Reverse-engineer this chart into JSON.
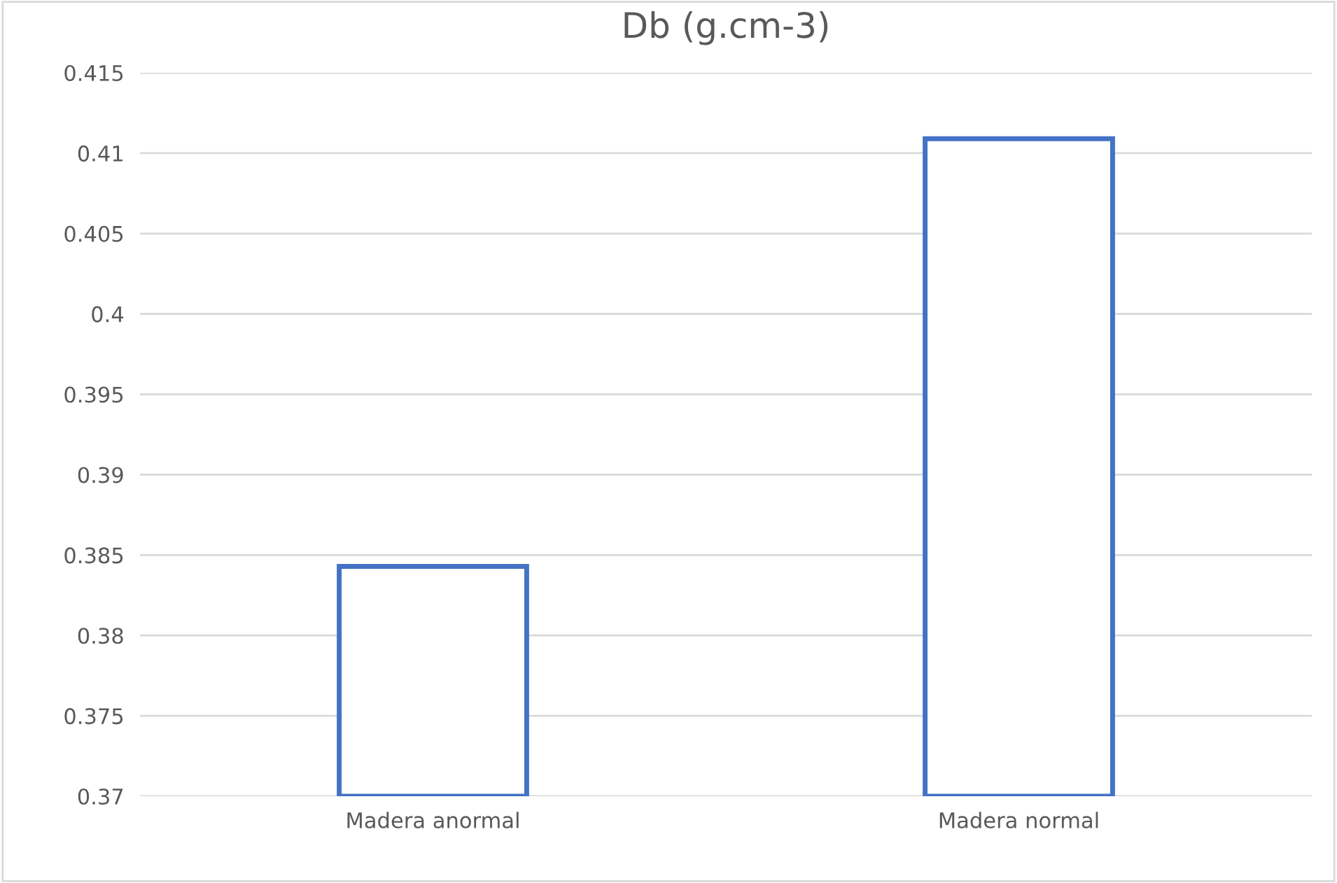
{
  "chart_data": {
    "type": "bar",
    "title": "Db (g.cm-3)",
    "categories": [
      "Madera anormal",
      "Madera normal"
    ],
    "values": [
      0.3843,
      0.4109
    ],
    "color": "#4472c4",
    "ylim": [
      0.37,
      0.415
    ],
    "yticks": [
      0.37,
      0.375,
      0.38,
      0.385,
      0.39,
      0.395,
      0.4,
      0.405,
      0.41,
      0.415
    ],
    "grid": "y"
  }
}
